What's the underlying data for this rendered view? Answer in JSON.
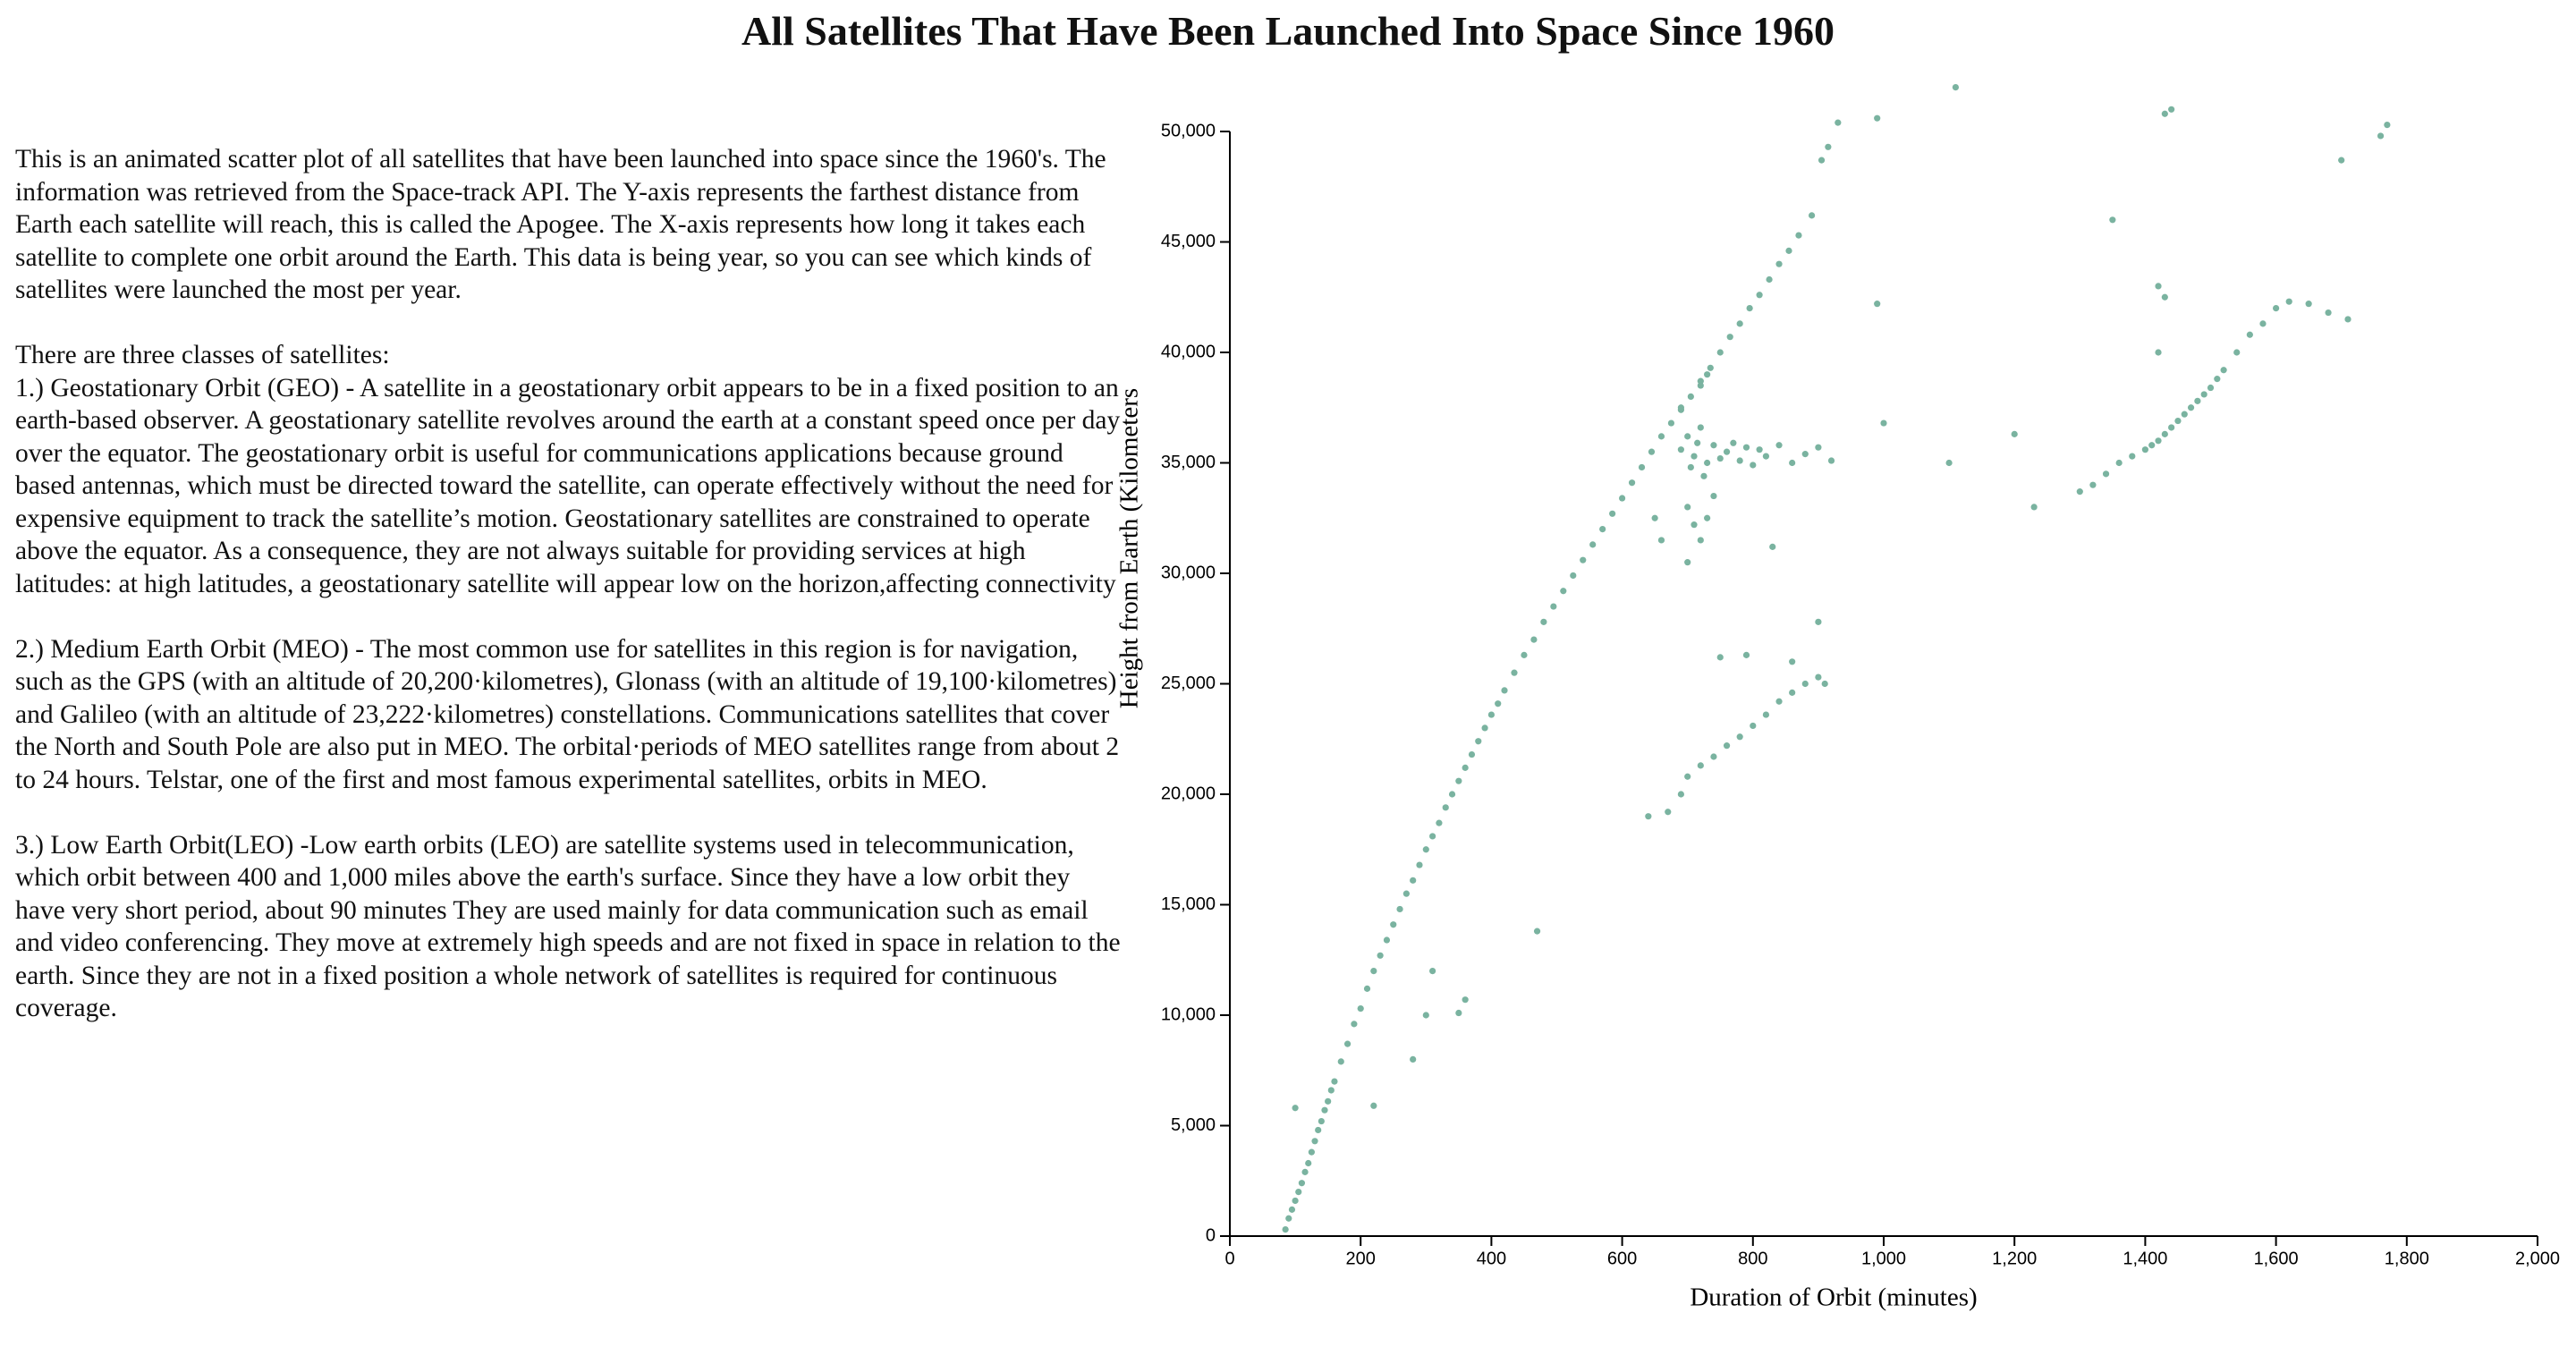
{
  "page_title": "All Satellites That Have Been Launched Into Space Since 1960",
  "description": {
    "intro": "This is an animated scatter plot of all satellites that have been launched into space since the 1960's. The information was retrieved from the Space-track API. The Y-axis represents the farthest distance from Earth each satellite will reach, this is called the Apogee. The X-axis represents how long it takes each satellite to complete one orbit around the Earth. This data is being year, so you can see which kinds of satellites were launched the most per year.",
    "classes_heading": "There are three classes of satellites:",
    "classes": [
      "1.) Geostationary Orbit (GEO) - A satellite in a geostationary orbit appears to be in a fixed position to an earth-based observer. A geostationary satellite revolves around the earth at a constant speed once per day over the equator. The geostationary orbit is useful for communications applications because ground based antennas, which must be directed toward the satellite, can operate effectively without the need for expensive equipment to track the satellite’s motion. Geostationary satellites are constrained to operate above the equator. As a consequence, they are not always suitable for providing services at high latitudes: at high latitudes, a geostationary satellite will appear low on the horizon,affecting connectivity",
      "2.) Medium Earth Orbit (MEO) - The most common use for satellites in this region is for navigation, such as the GPS (with an altitude of 20,200·kilometres), Glonass (with an altitude of 19,100·kilometres) and Galileo (with an altitude of 23,222·kilometres) constellations. Communications satellites that cover the North and South Pole are also put in MEO. The orbital·periods of MEO satellites range from about 2 to 24 hours. Telstar, one of the first and most famous experimental satellites, orbits in MEO.",
      "3.) Low Earth Orbit(LEO) -Low earth orbits (LEO) are satellite systems used in telecommunication, which orbit between 400 and 1,000 miles above the earth's surface. Since they have a low orbit they have very short period, about 90 minutes They are used mainly for data communication such as email and video conferencing. They move at extremely high speeds and are not fixed in space in relation to the earth. Since they are not in a fixed position a whole network of satellites is required for continuous coverage."
    ]
  },
  "chart_data": {
    "type": "scatter",
    "x_label": "Duration of Orbit (minutes)",
    "y_label": "Height from Earth (Kilometers",
    "color": "#7ab3a0",
    "xlim": [
      0,
      2000
    ],
    "ylim": [
      0,
      50000
    ],
    "xticks": [
      0,
      200,
      400,
      600,
      800,
      {
        "value": 1000,
        "label": "1,000"
      },
      {
        "value": 1200,
        "label": "1,200"
      },
      {
        "value": 1400,
        "label": "1,400"
      },
      {
        "value": 1600,
        "label": "1,600"
      },
      {
        "value": 1800,
        "label": "1,800"
      },
      {
        "value": 2000,
        "label": "2,000"
      }
    ],
    "yticks": [
      0,
      {
        "value": 5000,
        "label": "5,000"
      },
      {
        "value": 10000,
        "label": "10,000"
      },
      {
        "value": 15000,
        "label": "15,000"
      },
      {
        "value": 20000,
        "label": "20,000"
      },
      {
        "value": 25000,
        "label": "25,000"
      },
      {
        "value": 30000,
        "label": "30,000"
      },
      {
        "value": 35000,
        "label": "35,000"
      },
      {
        "value": 40000,
        "label": "40,000"
      },
      {
        "value": 45000,
        "label": "45,000"
      },
      {
        "value": 50000,
        "label": "50,000"
      }
    ],
    "x": [
      85,
      90,
      95,
      100,
      105,
      110,
      115,
      120,
      125,
      130,
      135,
      140,
      145,
      150,
      155,
      160,
      170,
      180,
      190,
      200,
      210,
      220,
      230,
      240,
      250,
      260,
      270,
      280,
      290,
      300,
      310,
      320,
      330,
      340,
      350,
      360,
      370,
      380,
      390,
      400,
      410,
      420,
      435,
      450,
      465,
      480,
      495,
      510,
      525,
      540,
      555,
      570,
      585,
      600,
      615,
      630,
      645,
      660,
      675,
      690,
      705,
      720,
      735,
      750,
      765,
      780,
      795,
      810,
      825,
      840,
      855,
      870,
      890,
      905,
      915,
      930,
      990,
      1110,
      690,
      700,
      705,
      710,
      715,
      720,
      725,
      730,
      740,
      750,
      760,
      770,
      780,
      790,
      800,
      810,
      820,
      840,
      860,
      880,
      900,
      920,
      700,
      710,
      720,
      730,
      690,
      720,
      740,
      660,
      700,
      730,
      1300,
      1320,
      1340,
      1360,
      1380,
      1400,
      1410,
      1420,
      1430,
      1440,
      1450,
      1460,
      1470,
      1480,
      1490,
      1500,
      1510,
      1520,
      1540,
      1560,
      1580,
      1600,
      1620,
      1650,
      1680,
      1700,
      1710,
      1760,
      1770,
      1420,
      1430,
      1440,
      1350,
      1230,
      1200,
      1100,
      1000,
      990,
      1420,
      1430,
      640,
      670,
      690,
      700,
      720,
      740,
      760,
      780,
      800,
      820,
      840,
      860,
      880,
      900,
      910,
      750,
      790,
      860,
      900,
      100,
      220,
      280,
      300,
      310,
      350,
      360,
      470,
      650,
      830
    ],
    "y": [
      300,
      800,
      1200,
      1600,
      2000,
      2400,
      2900,
      3300,
      3800,
      4300,
      4800,
      5200,
      5700,
      6100,
      6600,
      7000,
      7900,
      8700,
      9600,
      10300,
      11200,
      12000,
      12700,
      13400,
      14100,
      14800,
      15500,
      16100,
      16800,
      17500,
      18100,
      18700,
      19400,
      20000,
      20600,
      21200,
      21800,
      22400,
      23000,
      23600,
      24100,
      24700,
      25500,
      26300,
      27000,
      27800,
      28500,
      29200,
      29900,
      30600,
      31300,
      32000,
      32700,
      33400,
      34100,
      34800,
      35500,
      36200,
      36800,
      37400,
      38000,
      38700,
      39300,
      40000,
      40700,
      41300,
      42000,
      42600,
      43300,
      44000,
      44600,
      45300,
      46200,
      48700,
      49300,
      50400,
      50600,
      52000,
      35600,
      36200,
      34800,
      35300,
      35900,
      36600,
      34400,
      35000,
      35800,
      35200,
      35500,
      35900,
      35100,
      35700,
      34900,
      35600,
      35300,
      35800,
      35000,
      35400,
      35700,
      35100,
      33000,
      32200,
      31500,
      39000,
      37500,
      38500,
      33500,
      31500,
      30500,
      32500,
      33700,
      34000,
      34500,
      35000,
      35300,
      35600,
      35800,
      36000,
      36300,
      36600,
      36900,
      37200,
      37500,
      37800,
      38100,
      38400,
      38800,
      39200,
      40000,
      40800,
      41300,
      42000,
      42300,
      42200,
      41800,
      48700,
      41500,
      49800,
      50300,
      43000,
      50800,
      51000,
      46000,
      33000,
      36300,
      35000,
      36800,
      42200,
      40000,
      42500,
      19000,
      19200,
      20000,
      20800,
      21300,
      21700,
      22200,
      22600,
      23100,
      23600,
      24200,
      24600,
      25000,
      25300,
      25000,
      26200,
      26300,
      26000,
      27800,
      5800,
      5900,
      8000,
      10000,
      12000,
      10100,
      10700,
      13800,
      32500,
      31200
    ]
  }
}
